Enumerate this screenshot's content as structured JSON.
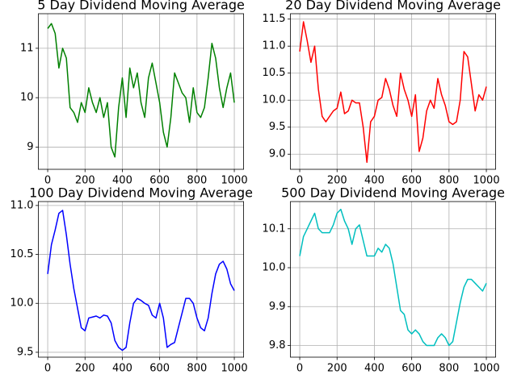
{
  "chart_data": [
    {
      "type": "line",
      "title": "5 Day Dividend Moving Average",
      "color": "#008000",
      "grid": true,
      "x": [
        0,
        20,
        40,
        60,
        80,
        100,
        120,
        140,
        160,
        180,
        200,
        220,
        240,
        260,
        280,
        300,
        320,
        340,
        360,
        380,
        400,
        420,
        440,
        460,
        480,
        500,
        520,
        540,
        560,
        580,
        600,
        620,
        640,
        660,
        680,
        700,
        720,
        740,
        760,
        780,
        800,
        820,
        840,
        860,
        880,
        900,
        920,
        940,
        960,
        980,
        1000
      ],
      "values": [
        11.4,
        11.5,
        11.3,
        10.6,
        11.0,
        10.8,
        9.8,
        9.7,
        9.5,
        9.9,
        9.7,
        10.2,
        9.9,
        9.7,
        10.0,
        9.6,
        9.9,
        9.0,
        8.8,
        9.8,
        10.4,
        9.6,
        10.6,
        10.2,
        10.5,
        9.9,
        9.6,
        10.4,
        10.7,
        10.3,
        9.9,
        9.3,
        9.0,
        9.6,
        10.5,
        10.3,
        10.1,
        10.0,
        9.5,
        10.2,
        9.7,
        9.6,
        9.8,
        10.4,
        11.1,
        10.8,
        10.2,
        9.8,
        10.2,
        10.5,
        9.9
      ],
      "xlim": [
        -50,
        1050
      ],
      "xticks": [
        0,
        200,
        400,
        600,
        800,
        1000
      ],
      "ylim": [
        8.55,
        11.7
      ],
      "yticks": [
        9,
        10,
        11
      ]
    },
    {
      "type": "line",
      "title": "20 Day Dividend Moving Average",
      "color": "#ff0000",
      "grid": true,
      "x": [
        0,
        20,
        40,
        60,
        80,
        100,
        120,
        140,
        160,
        180,
        200,
        220,
        240,
        260,
        280,
        300,
        320,
        340,
        360,
        380,
        400,
        420,
        440,
        460,
        480,
        500,
        520,
        540,
        560,
        580,
        600,
        620,
        640,
        660,
        680,
        700,
        720,
        740,
        760,
        780,
        800,
        820,
        840,
        860,
        880,
        900,
        920,
        940,
        960,
        980,
        1000
      ],
      "values": [
        10.9,
        11.45,
        11.1,
        10.7,
        11.0,
        10.2,
        9.7,
        9.6,
        9.7,
        9.8,
        9.85,
        10.15,
        9.75,
        9.8,
        10.0,
        9.95,
        9.95,
        9.5,
        8.85,
        9.6,
        9.7,
        10.0,
        10.05,
        10.4,
        10.2,
        9.9,
        9.7,
        10.5,
        10.2,
        10.0,
        9.7,
        10.1,
        9.05,
        9.3,
        9.8,
        10.0,
        9.85,
        10.4,
        10.1,
        9.9,
        9.6,
        9.55,
        9.6,
        10.0,
        10.9,
        10.8,
        10.3,
        9.8,
        10.1,
        10.0,
        10.25
      ],
      "xlim": [
        -50,
        1050
      ],
      "xticks": [
        0,
        200,
        400,
        600,
        800,
        1000
      ],
      "ylim": [
        8.72,
        11.6
      ],
      "yticks": [
        {
          "value": 9,
          "label": "9.0"
        },
        9.5,
        {
          "value": 10,
          "label": "10.0"
        },
        10.5,
        {
          "value": 11,
          "label": "11.0"
        },
        11.5
      ]
    },
    {
      "type": "line",
      "title": "100 Day Dividend Moving Average",
      "color": "#0000ff",
      "grid": true,
      "x": [
        0,
        20,
        40,
        60,
        80,
        100,
        120,
        140,
        160,
        180,
        200,
        220,
        240,
        260,
        280,
        300,
        320,
        340,
        360,
        380,
        400,
        420,
        440,
        460,
        480,
        500,
        520,
        540,
        560,
        580,
        600,
        620,
        640,
        660,
        680,
        700,
        720,
        740,
        760,
        780,
        800,
        820,
        840,
        860,
        880,
        900,
        920,
        940,
        960,
        980,
        1000
      ],
      "values": [
        10.3,
        10.6,
        10.75,
        10.92,
        10.95,
        10.7,
        10.4,
        10.15,
        9.95,
        9.75,
        9.72,
        9.85,
        9.86,
        9.87,
        9.85,
        9.88,
        9.87,
        9.8,
        9.62,
        9.55,
        9.52,
        9.55,
        9.8,
        10.0,
        10.05,
        10.03,
        10.0,
        9.98,
        9.88,
        9.85,
        10.0,
        9.85,
        9.55,
        9.58,
        9.6,
        9.75,
        9.9,
        10.05,
        10.05,
        10.0,
        9.85,
        9.75,
        9.72,
        9.85,
        10.1,
        10.3,
        10.4,
        10.43,
        10.35,
        10.2,
        10.13
      ],
      "xlim": [
        -50,
        1050
      ],
      "xticks": [
        0,
        200,
        400,
        600,
        800,
        1000
      ],
      "ylim": [
        9.45,
        11.04
      ],
      "yticks": [
        9.5,
        {
          "value": 10,
          "label": "10.0"
        },
        10.5,
        {
          "value": 11,
          "label": "11.0"
        }
      ]
    },
    {
      "type": "line",
      "title": "500 Day Dividend Moving Average",
      "color": "#00bfbf",
      "grid": true,
      "x": [
        0,
        20,
        40,
        60,
        80,
        100,
        120,
        140,
        160,
        180,
        200,
        220,
        240,
        260,
        280,
        300,
        320,
        340,
        360,
        380,
        400,
        420,
        440,
        460,
        480,
        500,
        520,
        540,
        560,
        580,
        600,
        620,
        640,
        660,
        680,
        700,
        720,
        740,
        760,
        780,
        800,
        820,
        840,
        860,
        880,
        900,
        920,
        940,
        960,
        980,
        1000
      ],
      "values": [
        10.03,
        10.08,
        10.1,
        10.12,
        10.14,
        10.1,
        10.09,
        10.09,
        10.09,
        10.11,
        10.14,
        10.15,
        10.12,
        10.1,
        10.06,
        10.1,
        10.11,
        10.07,
        10.03,
        10.03,
        10.03,
        10.05,
        10.04,
        10.06,
        10.05,
        10.01,
        9.95,
        9.89,
        9.88,
        9.84,
        9.83,
        9.84,
        9.83,
        9.81,
        9.8,
        9.8,
        9.8,
        9.82,
        9.83,
        9.82,
        9.8,
        9.81,
        9.86,
        9.91,
        9.95,
        9.97,
        9.97,
        9.96,
        9.95,
        9.94,
        9.96
      ],
      "xlim": [
        -50,
        1050
      ],
      "xticks": [
        0,
        200,
        400,
        600,
        800,
        1000
      ],
      "ylim": [
        9.77,
        10.17
      ],
      "yticks": [
        9.8,
        9.9,
        {
          "value": 10,
          "label": "10.0"
        },
        10.1
      ]
    }
  ]
}
